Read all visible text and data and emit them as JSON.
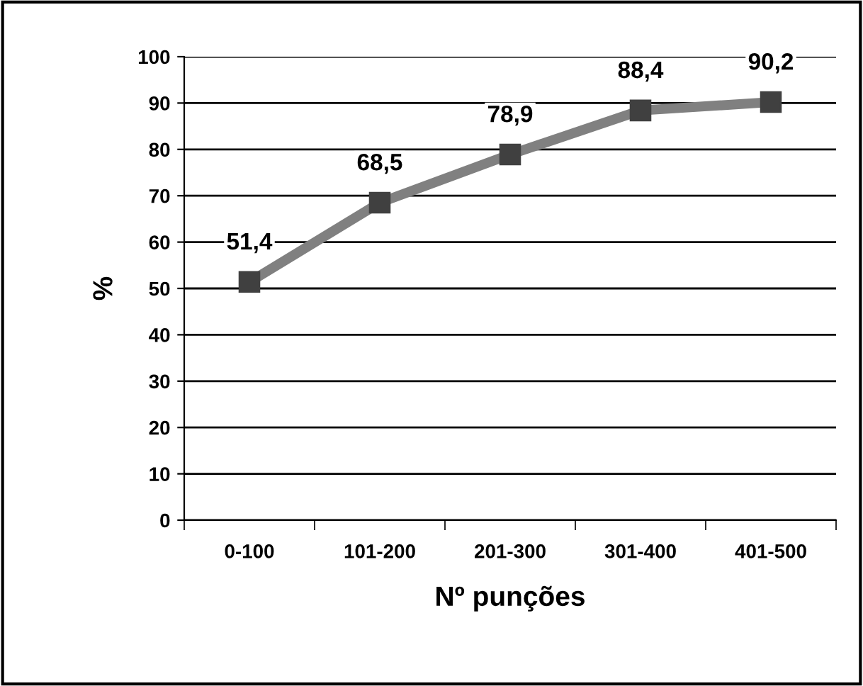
{
  "chart_data": {
    "type": "line",
    "xlabel": "Nº punções",
    "ylabel": "%",
    "categories": [
      "0-100",
      "101-200",
      "201-300",
      "301-400",
      "401-500"
    ],
    "series": [
      {
        "color": "#808080",
        "values": [
          51.4,
          68.5,
          78.9,
          88.4,
          90.2
        ],
        "value_labels": [
          "51,4",
          "68,5",
          "78,9",
          "88,4",
          "90,2"
        ]
      }
    ],
    "ylim": [
      0,
      100
    ],
    "yticks": [
      0,
      10,
      20,
      30,
      40,
      50,
      60,
      70,
      80,
      90,
      100
    ],
    "grid": "y",
    "marker": "square",
    "line_style": "solid",
    "legend": false
  }
}
